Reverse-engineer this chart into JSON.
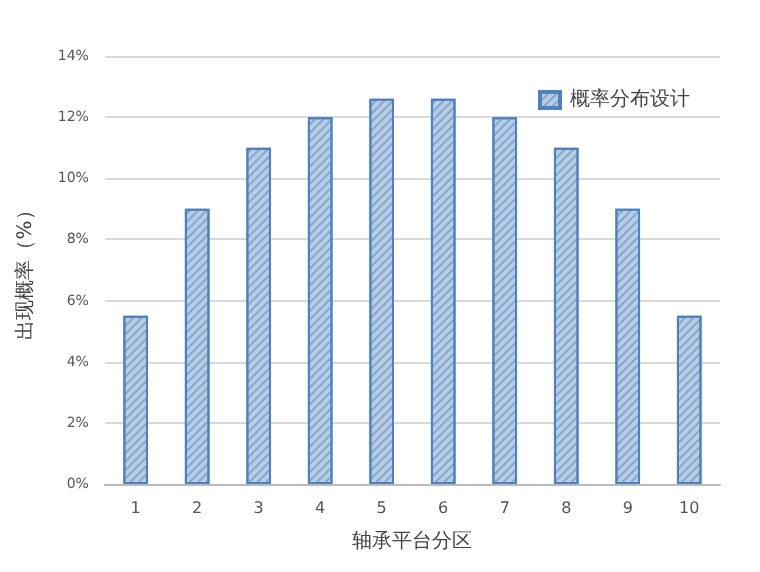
{
  "chart_data": {
    "type": "bar",
    "xlabel": "轴承平台分区",
    "ylabel": "出现概率（%）",
    "categories": [
      "1",
      "2",
      "3",
      "4",
      "5",
      "6",
      "7",
      "8",
      "9",
      "10"
    ],
    "series": [
      {
        "name": "概率分布设计",
        "color": "#b8cce4",
        "values": [
          5.5,
          9,
          11,
          12,
          12.6,
          12.6,
          12,
          11,
          9,
          5.5
        ]
      }
    ],
    "ylim": [
      0,
      14
    ],
    "yticks": [
      {
        "value": 0,
        "label": "0%"
      },
      {
        "value": 2,
        "label": "2%"
      },
      {
        "value": 4,
        "label": "4%"
      },
      {
        "value": 6,
        "label": "6%"
      },
      {
        "value": 8,
        "label": "8%"
      },
      {
        "value": 10,
        "label": "10%"
      },
      {
        "value": 12,
        "label": "12%"
      },
      {
        "value": 14,
        "label": "14%"
      }
    ],
    "grid": "y",
    "legend": "top right"
  }
}
